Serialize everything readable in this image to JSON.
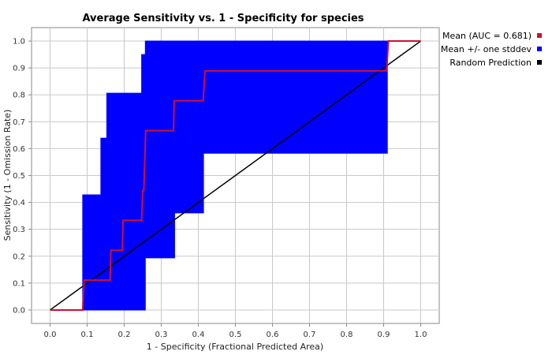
{
  "chart_data": {
    "type": "line",
    "title": "Average Sensitivity vs. 1 - Specificity for species",
    "xlabel": "1 - Specificity (Fractional Predicted Area)",
    "ylabel": "Sensitivity (1 - Omission Rate)",
    "xlim": [
      -0.05,
      1.05
    ],
    "ylim": [
      -0.05,
      1.05
    ],
    "x_ticks": [
      "0.0",
      "0.1",
      "0.2",
      "0.3",
      "0.4",
      "0.5",
      "0.6",
      "0.7",
      "0.8",
      "0.9",
      "1.0"
    ],
    "y_ticks": [
      "0.0",
      "0.1",
      "0.2",
      "0.3",
      "0.4",
      "0.5",
      "0.6",
      "0.7",
      "0.8",
      "0.9",
      "1.0"
    ],
    "grid": true,
    "legend_position": "right",
    "series": [
      {
        "name": "Mean (AUC = 0.681)",
        "color": "#cc1133",
        "points": [
          [
            0.0,
            0.0
          ],
          [
            0.088,
            0.0
          ],
          [
            0.092,
            0.111
          ],
          [
            0.162,
            0.111
          ],
          [
            0.164,
            0.222
          ],
          [
            0.195,
            0.222
          ],
          [
            0.197,
            0.333
          ],
          [
            0.247,
            0.333
          ],
          [
            0.25,
            0.444
          ],
          [
            0.253,
            0.444
          ],
          [
            0.258,
            0.667
          ],
          [
            0.333,
            0.667
          ],
          [
            0.335,
            0.778
          ],
          [
            0.413,
            0.778
          ],
          [
            0.418,
            0.889
          ],
          [
            0.908,
            0.889
          ],
          [
            0.913,
            1.0
          ],
          [
            1.0,
            1.0
          ]
        ]
      },
      {
        "name": "Mean +/- one stddev",
        "color": "#0000ff",
        "band": [
          [
            0.088,
            0.0,
            0.428
          ],
          [
            0.137,
            0.0,
            0.428
          ],
          [
            0.137,
            0.0,
            0.639
          ],
          [
            0.153,
            0.0,
            0.639
          ],
          [
            0.153,
            0.0,
            0.806
          ],
          [
            0.183,
            0.0,
            0.806
          ],
          [
            0.183,
            0.0,
            0.806
          ],
          [
            0.247,
            0.0,
            0.806
          ],
          [
            0.247,
            0.0,
            0.95
          ],
          [
            0.257,
            0.0,
            0.95
          ],
          [
            0.257,
            0.194,
            1.0
          ],
          [
            0.336,
            0.194,
            1.0
          ],
          [
            0.336,
            0.361,
            1.0
          ],
          [
            0.414,
            0.361,
            1.0
          ],
          [
            0.414,
            0.583,
            1.0
          ],
          [
            0.91,
            0.583,
            1.0
          ]
        ]
      },
      {
        "name": "Random Prediction",
        "color": "#000000",
        "points": [
          [
            0.0,
            0.0
          ],
          [
            1.0,
            1.0
          ]
        ]
      }
    ]
  }
}
